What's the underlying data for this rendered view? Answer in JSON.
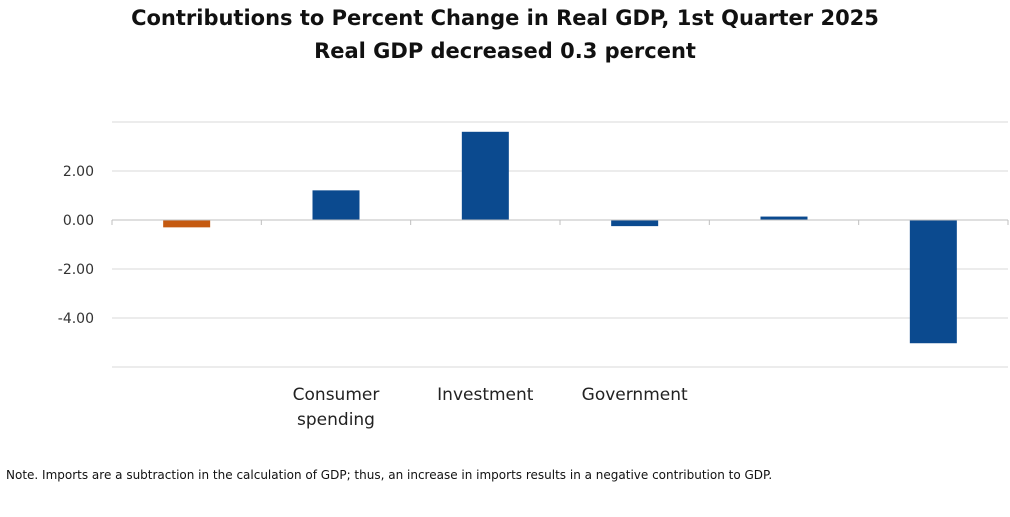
{
  "chart_data": {
    "type": "bar",
    "title": "Contributions to Percent Change in Real GDP, 1st Quarter 2025",
    "subtitle": "Real GDP decreased 0.3 percent",
    "categories": [
      "",
      "Consumer spending",
      "Investment",
      "Government",
      "",
      ""
    ],
    "category_lines": [
      [],
      [
        "Consumer",
        "spending"
      ],
      [
        "Investment"
      ],
      [
        "Government"
      ],
      [],
      []
    ],
    "values": [
      -0.3,
      1.21,
      3.6,
      -0.25,
      0.14,
      -5.03
    ],
    "bar_colors": [
      "#c55a11",
      "#0b4a8f",
      "#0b4a8f",
      "#0b4a8f",
      "#0b4a8f",
      "#0b4a8f"
    ],
    "yticks": [
      -4.0,
      -2.0,
      0.0,
      2.0
    ],
    "ytick_labels": [
      "-4.00",
      "-2.00",
      "0.00",
      "2.00"
    ],
    "ylim": [
      -6,
      4
    ],
    "grid": true,
    "xlabel": "",
    "ylabel": ""
  },
  "note": "Note. Imports are a subtraction in the calculation of GDP; thus, an increase in imports results in a negative contribution to GDP."
}
